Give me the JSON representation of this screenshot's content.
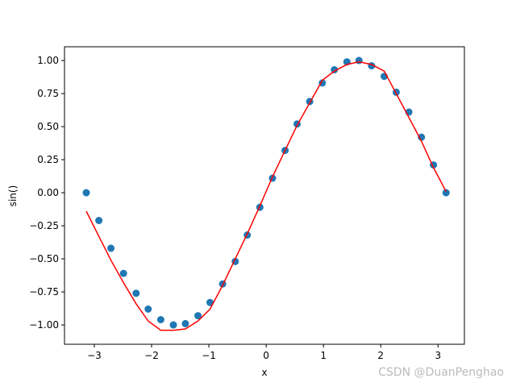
{
  "chart_data": {
    "type": "scatter",
    "xlabel": "x",
    "ylabel": "sin()",
    "x": [
      -3.14,
      -2.92,
      -2.71,
      -2.49,
      -2.27,
      -2.06,
      -1.84,
      -1.62,
      -1.41,
      -1.19,
      -0.98,
      -0.76,
      -0.54,
      -0.33,
      -0.11,
      0.11,
      0.33,
      0.54,
      0.76,
      0.98,
      1.19,
      1.41,
      1.62,
      1.84,
      2.06,
      2.27,
      2.49,
      2.71,
      2.92,
      3.14
    ],
    "series": [
      {
        "mark": "dot",
        "color": "#1f77b4",
        "values": [
          0.0,
          -0.21,
          -0.42,
          -0.61,
          -0.76,
          -0.88,
          -0.96,
          -1.0,
          -0.99,
          -0.93,
          -0.83,
          -0.69,
          -0.52,
          -0.32,
          -0.11,
          0.11,
          0.32,
          0.52,
          0.69,
          0.83,
          0.93,
          0.99,
          1.0,
          0.96,
          0.88,
          0.76,
          0.61,
          0.42,
          0.21,
          0.0
        ]
      },
      {
        "mark": "line",
        "color": "#ff0000",
        "values": [
          -0.14,
          -0.33,
          -0.51,
          -0.68,
          -0.84,
          -0.97,
          -1.04,
          -1.04,
          -1.03,
          -0.97,
          -0.88,
          -0.7,
          -0.5,
          -0.31,
          -0.1,
          0.12,
          0.32,
          0.51,
          0.68,
          0.85,
          0.92,
          0.97,
          0.99,
          0.97,
          0.92,
          0.75,
          0.57,
          0.39,
          0.19,
          0.01
        ]
      }
    ],
    "xlim": [
      -3.52,
      3.46
    ],
    "ylim": [
      -1.146,
      1.104
    ],
    "xticks": [
      {
        "value": -3,
        "label": "−3"
      },
      {
        "value": -2,
        "label": "−2"
      },
      {
        "value": -1,
        "label": "−1"
      },
      0,
      1,
      2,
      3
    ],
    "yticks": [
      {
        "value": -1,
        "label": "−1.00"
      },
      {
        "value": -0.75,
        "label": "−0.75"
      },
      {
        "value": -0.5,
        "label": "−0.50"
      },
      {
        "value": -0.25,
        "label": "−0.25"
      },
      {
        "value": 0,
        "label": "0.00"
      },
      {
        "value": 0.25,
        "label": "0.25"
      },
      {
        "value": 0.5,
        "label": "0.50"
      },
      {
        "value": 0.75,
        "label": "0.75"
      },
      {
        "value": 1,
        "label": "1.00"
      }
    ],
    "watermark": "CSDN @DuanPenghao"
  }
}
